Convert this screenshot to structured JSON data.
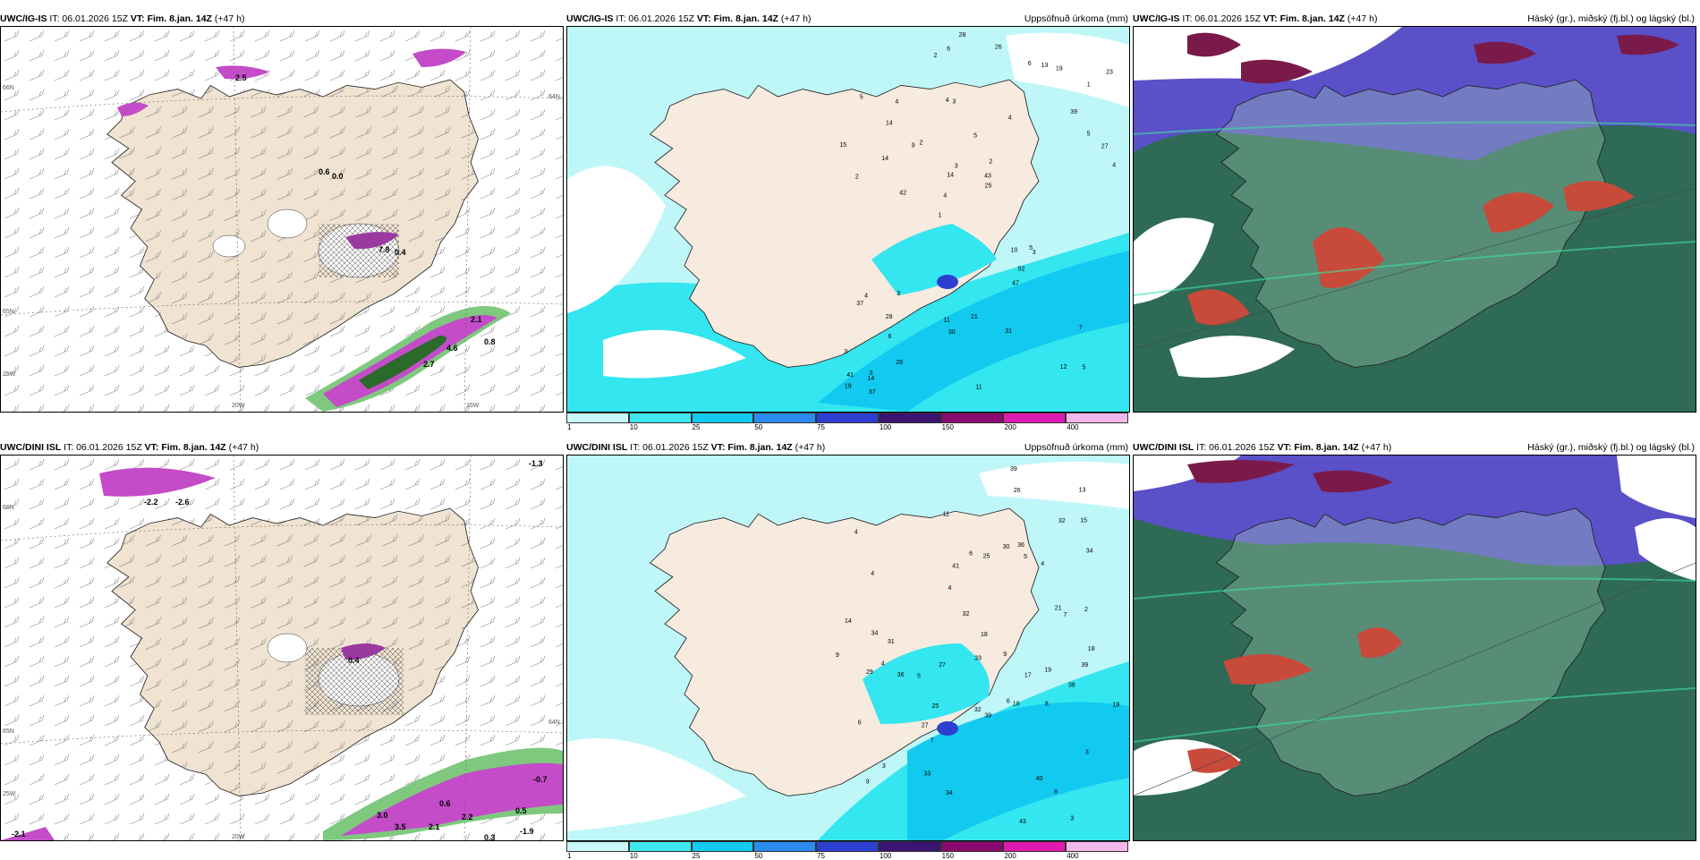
{
  "panels": {
    "p1": {
      "model": "UWC/IG-IS",
      "it": "IT: 06.01.2026 15Z",
      "vt": "VT: Fim. 8.jan. 14Z",
      "lead": "(+47 h)",
      "right": "",
      "grid_labels": [
        "66N",
        "65N",
        "64N",
        "25W",
        "20W",
        "15W"
      ],
      "values": [
        "2.5",
        "0.6",
        "0.0",
        "7.8",
        "0.4",
        "2.7",
        "4.6",
        "0.8",
        "2.1"
      ]
    },
    "p2": {
      "model": "UWC/IG-IS",
      "it": "IT: 06.01.2026 15Z",
      "vt": "VT: Fim. 8.jan. 14Z",
      "lead": "(+47 h)",
      "right": "Uppsöfnuð úrkoma (mm)",
      "numbers": [
        "5",
        "2",
        "1",
        "1",
        "4",
        "3",
        "4",
        "5",
        "4",
        "2",
        "3",
        "6",
        "3",
        "2",
        "3",
        "5",
        "6",
        "4",
        "10",
        "5",
        "4",
        "11",
        "14",
        "4",
        "6",
        "3",
        "12",
        "7",
        "5",
        "11",
        "9",
        "14",
        "47",
        "28",
        "27",
        "43",
        "41",
        "30",
        "25",
        "37",
        "39",
        "23",
        "52",
        "31",
        "28",
        "37",
        "19",
        "21",
        "19",
        "28",
        "42",
        "15",
        "14",
        "13",
        "14",
        "26",
        "2",
        "3"
      ]
    },
    "p3": {
      "model": "UWC/IG-IS",
      "it": "IT: 06.01.2026 15Z",
      "vt": "VT: Fim. 8.jan. 14Z",
      "lead": "(+47 h)",
      "right": "Háský (gr.), miðský (fj.bl.) og lágský (bl.)"
    },
    "p4": {
      "model": "UWC/DINI ISL",
      "it": "IT: 06.01.2026 15Z",
      "vt": "VT: Fim. 8.jan. 14Z",
      "lead": "(+47 h)",
      "right": "",
      "grid_labels": [
        "66N",
        "65N",
        "64N",
        "25W",
        "20W"
      ],
      "values": [
        "-2.2",
        "-2.6",
        "-1.3",
        "0.4",
        "3.0",
        "3.5",
        "2.1",
        "2.2",
        "0.5",
        "-1.9",
        "0.3",
        "0.6",
        "-0.7",
        "-2.1"
      ]
    },
    "p5": {
      "model": "UWC/DINI ISL",
      "it": "IT: 06.01.2026 15Z",
      "vt": "VT: Fim. 8.jan. 14Z",
      "lead": "(+47 h)",
      "right": "Uppsöfnuð úrkoma (mm)",
      "numbers": [
        "3",
        "4",
        "6",
        "4",
        "3",
        "4",
        "3",
        "5",
        "4",
        "6",
        "5",
        "8",
        "7",
        "11",
        "9",
        "6",
        "19",
        "18",
        "14",
        "9",
        "13",
        "25",
        "21",
        "19",
        "18",
        "34",
        "36",
        "33",
        "32",
        "15",
        "18",
        "29",
        "27",
        "36",
        "41",
        "38",
        "39",
        "40",
        "32",
        "43",
        "25",
        "39",
        "33",
        "39",
        "27",
        "31",
        "34",
        "26",
        "30",
        "32",
        "17",
        "2",
        "8",
        "7",
        "4",
        "9",
        "34"
      ]
    },
    "p6": {
      "model": "UWC/DINI ISL",
      "it": "IT: 06.01.2026 15Z",
      "vt": "VT: Fim. 8.jan. 14Z",
      "lead": "(+47 h)",
      "right": "Háský (gr.), miðský (fj.bl.) og lágský (bl.)"
    }
  },
  "colorbar": {
    "ticks": [
      "1",
      "10",
      "25",
      "50",
      "75",
      "100",
      "150",
      "200",
      "400"
    ],
    "colors": [
      "#c8f8fa",
      "#3fe8ef",
      "#12c9ef",
      "#2a8cef",
      "#2d3fd0",
      "#3a1470",
      "#8a0a70",
      "#e01ab0",
      "#f2b8ec"
    ]
  },
  "colors": {
    "land": "#f1e3d1",
    "precip_light": "#bff7f9",
    "precip_mid": "#34e6ef",
    "cloud_low": "#2c7a60",
    "cloud_mid": "#5a50c8",
    "cloud_high": "#d04030"
  }
}
